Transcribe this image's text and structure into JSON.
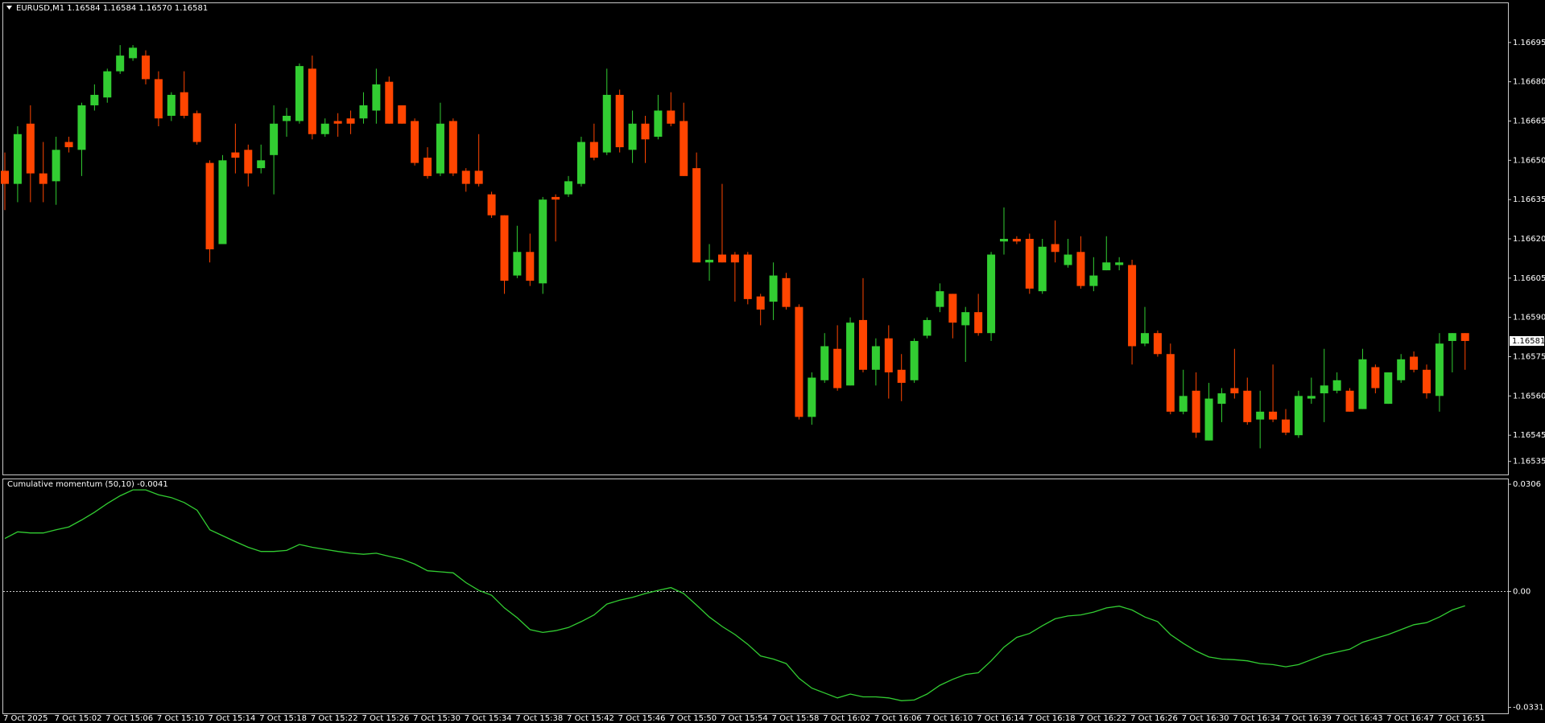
{
  "chart_data": [
    {
      "type": "candlestick",
      "title": "EURUSD,M1  1.16584 1.16584 1.16570 1.16581",
      "categories": [
        "7 Oct 2025",
        null,
        null,
        null,
        "7 Oct 15:02",
        null,
        null,
        null,
        "7 Oct 15:06",
        null,
        null,
        null,
        "7 Oct 15:10",
        null,
        null,
        null,
        "7 Oct 15:14",
        null,
        null,
        null,
        "7 Oct 15:18",
        null,
        null,
        null,
        "7 Oct 15:22",
        null,
        null,
        null,
        "7 Oct 15:26",
        null,
        null,
        null,
        "7 Oct 15:30",
        null,
        null,
        null,
        "7 Oct 15:34",
        null,
        null,
        null,
        "7 Oct 15:38",
        null,
        null,
        null,
        "7 Oct 15:42",
        null,
        null,
        null,
        "7 Oct 15:46",
        null,
        null,
        null,
        "7 Oct 15:50",
        null,
        null,
        null,
        "7 Oct 15:54",
        null,
        null,
        null,
        "7 Oct 15:58",
        null,
        null,
        null,
        "7 Oct 16:02",
        null,
        null,
        null,
        "7 Oct 16:06",
        null,
        null,
        null,
        "7 Oct 16:10",
        null,
        null,
        null,
        "7 Oct 16:14",
        null,
        null,
        null,
        "7 Oct 16:18",
        null,
        null,
        null,
        "7 Oct 16:22",
        null,
        null,
        null,
        "7 Oct 16:26",
        null,
        null,
        null,
        "7 Oct 16:30",
        null,
        null,
        null,
        "7 Oct 16:34",
        null,
        null,
        null,
        "7 Oct 16:39",
        null,
        null,
        null,
        "7 Oct 16:43",
        null,
        null,
        null,
        "7 Oct 16:47",
        null,
        null,
        null,
        "7 Oct 16:51",
        null,
        null
      ],
      "open": [
        1.16646,
        1.16641,
        1.16664,
        1.16645,
        1.16642,
        1.16657,
        1.16654,
        1.16671,
        1.16674,
        1.16684,
        1.16689,
        1.1669,
        1.16681,
        1.16667,
        1.16676,
        1.16668,
        1.16649,
        1.16618,
        1.16653,
        1.16654,
        1.16647,
        1.16652,
        1.16665,
        1.16665,
        1.16685,
        1.1666,
        1.16665,
        1.16666,
        1.16666,
        1.16669,
        1.1668,
        1.16671,
        1.16665,
        1.16651,
        1.16645,
        1.16665,
        1.16646,
        1.16646,
        1.16637,
        1.16629,
        1.16606,
        1.16615,
        1.16603,
        1.16636,
        1.16637,
        1.16641,
        1.16657,
        1.16653,
        1.16675,
        1.16654,
        1.16664,
        1.16659,
        1.16669,
        1.16665,
        1.16647,
        1.16611,
        1.16614,
        1.16614,
        1.16614,
        1.16598,
        1.16596,
        1.16605,
        1.16594,
        1.16552,
        1.16566,
        1.16578,
        1.16564,
        1.16589,
        1.1657,
        1.16582,
        1.1657,
        1.16566,
        1.16583,
        1.16594,
        1.16599,
        1.16587,
        1.16592,
        1.16584,
        1.16619,
        1.1662,
        1.1662,
        1.166,
        1.16618,
        1.1661,
        1.16615,
        1.16602,
        1.16608,
        1.1661,
        1.1661,
        1.1658,
        1.16584,
        1.16576,
        1.16554,
        1.16562,
        1.16543,
        1.16557,
        1.16563,
        1.16562,
        1.16551,
        1.16554,
        1.16551,
        1.16545,
        1.16559,
        1.16561,
        1.16562,
        1.16562,
        1.16555,
        1.16571,
        1.16557,
        1.16566,
        1.16575,
        1.1657,
        1.1656,
        1.16581,
        1.16584
      ],
      "high": [
        1.16653,
        1.16663,
        1.16671,
        1.16657,
        1.16659,
        1.16659,
        1.16672,
        1.16679,
        1.16685,
        1.16694,
        1.16694,
        1.16692,
        1.16684,
        1.16676,
        1.16684,
        1.16669,
        1.1665,
        1.16652,
        1.16664,
        1.16656,
        1.16656,
        1.16671,
        1.1667,
        1.16687,
        1.1669,
        1.16666,
        1.16668,
        1.16669,
        1.16676,
        1.16685,
        1.16682,
        1.16671,
        1.16666,
        1.16655,
        1.16672,
        1.16666,
        1.16647,
        1.1666,
        1.16638,
        1.16629,
        1.16625,
        1.16622,
        1.16636,
        1.16637,
        1.16644,
        1.16659,
        1.16664,
        1.16685,
        1.16677,
        1.16669,
        1.16667,
        1.16675,
        1.16676,
        1.16672,
        1.16653,
        1.16618,
        1.16641,
        1.16615,
        1.16615,
        1.16599,
        1.16611,
        1.16607,
        1.16595,
        1.16569,
        1.16584,
        1.16587,
        1.1659,
        1.16605,
        1.16582,
        1.16587,
        1.16576,
        1.16582,
        1.1659,
        1.16603,
        1.16599,
        1.16594,
        1.16599,
        1.16615,
        1.16632,
        1.16621,
        1.16622,
        1.1662,
        1.16627,
        1.1662,
        1.16621,
        1.16613,
        1.16621,
        1.16613,
        1.16612,
        1.16594,
        1.16585,
        1.1658,
        1.1657,
        1.16569,
        1.16565,
        1.16563,
        1.16578,
        1.16567,
        1.16562,
        1.16572,
        1.16555,
        1.16562,
        1.16567,
        1.16578,
        1.16569,
        1.16563,
        1.16578,
        1.16572,
        1.16569,
        1.16576,
        1.16577,
        1.16572,
        1.16584,
        1.16584,
        1.16584
      ],
      "low": [
        1.16631,
        1.16634,
        1.16634,
        1.16634,
        1.16633,
        1.16653,
        1.16644,
        1.16669,
        1.16672,
        1.16683,
        1.16688,
        1.16679,
        1.16663,
        1.16665,
        1.16666,
        1.16656,
        1.16611,
        1.16618,
        1.16645,
        1.1664,
        1.16645,
        1.16637,
        1.16659,
        1.16664,
        1.16658,
        1.16659,
        1.16659,
        1.1666,
        1.16664,
        1.16664,
        1.16664,
        1.16664,
        1.16648,
        1.16643,
        1.16644,
        1.16644,
        1.16638,
        1.1664,
        1.16628,
        1.16599,
        1.16605,
        1.16602,
        1.16599,
        1.16619,
        1.16636,
        1.1664,
        1.1665,
        1.16652,
        1.16653,
        1.16649,
        1.16649,
        1.16658,
        1.16663,
        1.16644,
        1.16611,
        1.16604,
        1.16611,
        1.16596,
        1.16595,
        1.16587,
        1.16589,
        1.16593,
        1.16551,
        1.16549,
        1.16565,
        1.16562,
        1.16564,
        1.16569,
        1.16564,
        1.16559,
        1.16558,
        1.16565,
        1.16582,
        1.16592,
        1.16582,
        1.16573,
        1.16583,
        1.16581,
        1.16614,
        1.16618,
        1.16599,
        1.16599,
        1.16611,
        1.16609,
        1.16601,
        1.166,
        1.16608,
        1.16608,
        1.16572,
        1.16579,
        1.16575,
        1.16553,
        1.16553,
        1.16544,
        1.16543,
        1.1655,
        1.16559,
        1.16549,
        1.1654,
        1.1655,
        1.16545,
        1.16544,
        1.16557,
        1.1655,
        1.16561,
        1.16554,
        1.16555,
        1.16561,
        1.16557,
        1.16565,
        1.16569,
        1.16559,
        1.16554,
        1.16569,
        1.1657
      ],
      "close": [
        1.16641,
        1.1666,
        1.16645,
        1.16641,
        1.16654,
        1.16655,
        1.16671,
        1.16675,
        1.16684,
        1.1669,
        1.16693,
        1.16681,
        1.16666,
        1.16675,
        1.16667,
        1.16657,
        1.16616,
        1.1665,
        1.16651,
        1.16645,
        1.1665,
        1.16664,
        1.16667,
        1.16686,
        1.1666,
        1.16664,
        1.16664,
        1.16664,
        1.16671,
        1.16679,
        1.16664,
        1.16664,
        1.16649,
        1.16644,
        1.16664,
        1.16645,
        1.16641,
        1.16641,
        1.16629,
        1.16604,
        1.16615,
        1.16604,
        1.16635,
        1.16635,
        1.16642,
        1.16657,
        1.16651,
        1.16675,
        1.16655,
        1.16664,
        1.16658,
        1.16669,
        1.16664,
        1.16644,
        1.16611,
        1.16612,
        1.16611,
        1.16611,
        1.16597,
        1.16593,
        1.16606,
        1.16594,
        1.16552,
        1.16567,
        1.16579,
        1.16563,
        1.16588,
        1.1657,
        1.16579,
        1.16569,
        1.16565,
        1.16581,
        1.16589,
        1.166,
        1.16588,
        1.16592,
        1.16584,
        1.16614,
        1.1662,
        1.16619,
        1.16601,
        1.16617,
        1.16615,
        1.16614,
        1.16602,
        1.16606,
        1.16611,
        1.16611,
        1.16579,
        1.16584,
        1.16576,
        1.16554,
        1.1656,
        1.16546,
        1.16559,
        1.16561,
        1.16561,
        1.1655,
        1.16554,
        1.16551,
        1.16546,
        1.1656,
        1.1656,
        1.16564,
        1.16566,
        1.16554,
        1.16574,
        1.16563,
        1.16569,
        1.16574,
        1.1657,
        1.16561,
        1.1658,
        1.16584,
        1.16581
      ],
      "up_color": "#32cd32",
      "down_color": "#ff4500",
      "ylim": [
        1.1653,
        1.1671
      ],
      "yticks": [
        1.16535,
        1.16545,
        {
          "value": 1.1656,
          "label": "1.16560"
        },
        1.16575,
        {
          "value": 1.1659,
          "label": "1.16590"
        },
        1.16605,
        {
          "value": 1.1662,
          "label": "1.16620"
        },
        1.16635,
        {
          "value": 1.1665,
          "label": "1.16650"
        },
        1.16665,
        {
          "value": 1.1668,
          "label": "1.16680"
        },
        1.16695
      ],
      "grid": false
    },
    {
      "type": "line",
      "title": "Cumulative momentum (50,10) -0.0041",
      "color": "#32cd32",
      "values": [
        0.0151,
        0.017,
        0.0167,
        0.0167,
        0.0176,
        0.0184,
        0.0204,
        0.0226,
        0.0251,
        0.0273,
        0.029,
        0.029,
        0.0276,
        0.0268,
        0.0254,
        0.0232,
        0.0176,
        0.0159,
        0.0142,
        0.0126,
        0.0114,
        0.0114,
        0.0117,
        0.0134,
        0.0126,
        0.012,
        0.0114,
        0.0109,
        0.0106,
        0.0109,
        0.01,
        0.0092,
        0.0078,
        0.0059,
        0.0056,
        0.0053,
        0.0025,
        0.0003,
        -0.0011,
        -0.0047,
        -0.0075,
        -0.0109,
        -0.0117,
        -0.0112,
        -0.0103,
        -0.0086,
        -0.0067,
        -0.0036,
        -0.0025,
        -0.0017,
        -0.0006,
        0.0003,
        0.0011,
        -0.0006,
        -0.0039,
        -0.0073,
        -0.01,
        -0.0123,
        -0.0151,
        -0.0184,
        -0.0193,
        -0.0206,
        -0.0248,
        -0.0276,
        -0.029,
        -0.0304,
        -0.0293,
        -0.0301,
        -0.0301,
        -0.0304,
        -0.0312,
        -0.031,
        -0.0293,
        -0.0268,
        -0.0251,
        -0.0237,
        -0.0232,
        -0.0198,
        -0.0159,
        -0.0131,
        -0.012,
        -0.0098,
        -0.0078,
        -0.007,
        -0.0067,
        -0.0059,
        -0.0047,
        -0.0042,
        -0.0053,
        -0.0073,
        -0.0086,
        -0.0123,
        -0.0148,
        -0.017,
        -0.0187,
        -0.0193,
        -0.0195,
        -0.0198,
        -0.0206,
        -0.0209,
        -0.0215,
        -0.0209,
        -0.0195,
        -0.0181,
        -0.0173,
        -0.0165,
        -0.0145,
        -0.0134,
        -0.0123,
        -0.0109,
        -0.0095,
        -0.0089,
        -0.0073,
        -0.0053,
        -0.0041
      ],
      "ylim": [
        -0.0348,
        0.032
      ],
      "yticks": [
        0.0306,
        {
          "value": 0,
          "label": "0.00"
        },
        -0.0331
      ],
      "levels": [
        0
      ],
      "grid": false
    }
  ]
}
